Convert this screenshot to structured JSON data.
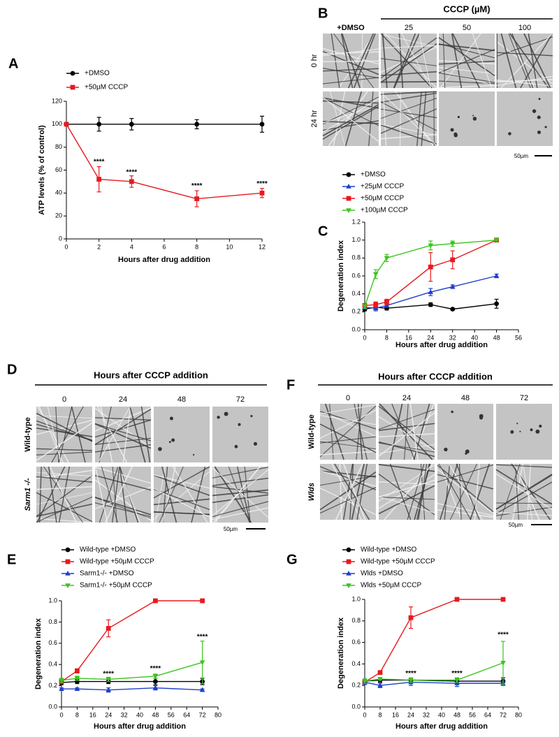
{
  "chart_data": [
    {
      "type": "line",
      "panel": "A",
      "xlabel": "Hours after drug addition",
      "ylabel": "ATP levels (% of control)",
      "x": [
        0,
        2,
        4,
        8,
        12
      ],
      "xlim": [
        0,
        12
      ],
      "xticks": [
        0,
        2,
        4,
        6,
        8,
        10,
        12
      ],
      "ylim": [
        0,
        120
      ],
      "yticks": [
        0,
        20,
        40,
        60,
        80,
        100,
        120
      ],
      "grid": false,
      "legend": "top-left",
      "series": [
        {
          "name": "+DMSO",
          "color": "#000000",
          "marker": "circle",
          "values": [
            100,
            100,
            100,
            100,
            100
          ],
          "errors": [
            0,
            6,
            5,
            4,
            7
          ]
        },
        {
          "name": "+50µM CCCP",
          "color": "#e8191f",
          "marker": "square",
          "values": [
            100,
            52,
            50,
            35,
            40
          ],
          "errors": [
            0,
            11,
            5,
            7,
            4
          ]
        }
      ],
      "annotations": [
        {
          "text": "****",
          "x": 2,
          "y": 67
        },
        {
          "text": "****",
          "x": 4,
          "y": 58
        },
        {
          "text": "****",
          "x": 8,
          "y": 46
        },
        {
          "text": "****",
          "x": 12,
          "y": 48
        }
      ]
    },
    {
      "type": "line",
      "panel": "C",
      "xlabel": "Hours after drug addition",
      "ylabel": "Degeneration index",
      "x": [
        0,
        4,
        8,
        24,
        32,
        48
      ],
      "xlim": [
        0,
        56
      ],
      "xticks": [
        0,
        8,
        16,
        24,
        32,
        40,
        48,
        56
      ],
      "ylim": [
        0,
        1.2
      ],
      "yticks": [
        {
          "value": 0,
          "label": "0.0"
        },
        0.2,
        0.4,
        0.6,
        0.8,
        {
          "value": 1,
          "label": "1.0"
        },
        1.2
      ],
      "grid": false,
      "legend": "top-left",
      "series": [
        {
          "name": "+DMSO",
          "color": "#000000",
          "marker": "circle",
          "values": [
            0.23,
            0.25,
            0.24,
            0.28,
            0.23,
            0.29
          ],
          "errors": [
            0.02,
            0.02,
            0.02,
            0.02,
            0.01,
            0.05
          ]
        },
        {
          "name": "+25µM CCCP",
          "color": "#1f3fc8",
          "marker": "triangle-up",
          "values": [
            0.25,
            0.24,
            0.27,
            0.42,
            0.48,
            0.6
          ],
          "errors": [
            0.02,
            0.03,
            0.02,
            0.04,
            0.02,
            0.02
          ]
        },
        {
          "name": "+50µM CCCP",
          "color": "#e8191f",
          "marker": "square",
          "values": [
            0.27,
            0.28,
            0.31,
            0.7,
            0.78,
            1.0
          ],
          "errors": [
            0.02,
            0.03,
            0.03,
            0.16,
            0.1,
            0.01
          ]
        },
        {
          "name": "+100µM CCCP",
          "color": "#3cc41e",
          "marker": "triangle-down",
          "values": [
            0.26,
            0.62,
            0.8,
            0.94,
            0.96,
            1.0
          ],
          "errors": [
            0.02,
            0.05,
            0.04,
            0.05,
            0.03,
            0.01
          ]
        }
      ]
    },
    {
      "type": "line",
      "panel": "E",
      "xlabel": "Hours after drug addition",
      "ylabel": "Degeneration index",
      "x": [
        0,
        8,
        24,
        48,
        72
      ],
      "xlim": [
        0,
        80
      ],
      "xticks": [
        0,
        8,
        16,
        24,
        32,
        40,
        48,
        56,
        64,
        72,
        80
      ],
      "ylim": [
        0,
        1.0
      ],
      "yticks": [
        {
          "value": 0,
          "label": "0.0"
        },
        0.2,
        0.4,
        0.6,
        0.8,
        {
          "value": 1,
          "label": "1.0"
        }
      ],
      "grid": false,
      "legend": "top-left",
      "series": [
        {
          "name": "Wild-type +DMSO",
          "color": "#000000",
          "marker": "circle",
          "values": [
            0.23,
            0.24,
            0.24,
            0.24,
            0.24
          ],
          "errors": [
            0.02,
            0.02,
            0.02,
            0.03,
            0.03
          ]
        },
        {
          "name": "Wild-type +50µM CCCP",
          "color": "#e8191f",
          "marker": "square",
          "values": [
            0.24,
            0.34,
            0.74,
            1.0,
            1.0
          ],
          "errors": [
            0.02,
            0.02,
            0.08,
            0,
            0
          ]
        },
        {
          "name": "Sarm1-/- +DMSO",
          "color": "#1f3fc8",
          "marker": "triangle-up",
          "values": [
            0.17,
            0.17,
            0.16,
            0.18,
            0.16
          ],
          "errors": [
            0.01,
            0.01,
            0.02,
            0.02,
            0.01
          ]
        },
        {
          "name": "Sarm1-/- +50µM CCCP",
          "color": "#3cc41e",
          "marker": "triangle-down",
          "values": [
            0.25,
            0.27,
            0.26,
            0.29,
            0.42
          ],
          "errors": [
            0.02,
            0.02,
            0.02,
            0.02,
            0.2
          ]
        }
      ],
      "annotations": [
        {
          "text": "****",
          "x": 24,
          "y": 0.31
        },
        {
          "text": "****",
          "x": 48,
          "y": 0.36
        },
        {
          "text": "****",
          "x": 72,
          "y": 0.66
        }
      ]
    },
    {
      "type": "line",
      "panel": "G",
      "xlabel": "Hours after drug addition",
      "ylabel": "Degeneration index",
      "x": [
        0,
        8,
        24,
        48,
        72
      ],
      "xlim": [
        0,
        80
      ],
      "xticks": [
        0,
        8,
        16,
        24,
        32,
        40,
        48,
        56,
        64,
        72,
        80
      ],
      "ylim": [
        0,
        1.0
      ],
      "yticks": [
        {
          "value": 0,
          "label": "0.0"
        },
        0.2,
        0.4,
        0.6,
        0.8,
        {
          "value": 1,
          "label": "1.0"
        }
      ],
      "grid": false,
      "legend": "top-left",
      "series": [
        {
          "name": "Wild-type +DMSO",
          "color": "#000000",
          "marker": "circle",
          "values": [
            0.24,
            0.25,
            0.25,
            0.24,
            0.24
          ],
          "errors": [
            0.02,
            0.02,
            0.02,
            0.03,
            0.03
          ]
        },
        {
          "name": "Wild-type +50µM CCCP",
          "color": "#e8191f",
          "marker": "square",
          "values": [
            0.23,
            0.32,
            0.83,
            1.0,
            1.0
          ],
          "errors": [
            0.02,
            0.01,
            0.1,
            0,
            0
          ]
        },
        {
          "name": "Wlds +DMSO",
          "color": "#1f3fc8",
          "marker": "triangle-up",
          "values": [
            0.23,
            0.2,
            0.23,
            0.22,
            0.22
          ],
          "errors": [
            0.02,
            0.02,
            0.03,
            0.03,
            0.02
          ]
        },
        {
          "name": "Wlds +50µM CCCP",
          "color": "#3cc41e",
          "marker": "triangle-down",
          "values": [
            0.24,
            0.26,
            0.25,
            0.25,
            0.41
          ],
          "errors": [
            0.02,
            0.01,
            0.02,
            0.02,
            0.2
          ]
        }
      ],
      "annotations": [
        {
          "text": "****",
          "x": 24,
          "y": 0.31
        },
        {
          "text": "****",
          "x": 48,
          "y": 0.31
        },
        {
          "text": "****",
          "x": 72,
          "y": 0.67
        }
      ]
    }
  ],
  "image_panels": [
    {
      "panel": "B",
      "header": "CCCP (µM)",
      "columns": [
        "+DMSO",
        "25",
        "50",
        "100"
      ],
      "rows": [
        "0 hr",
        "24 hr"
      ],
      "scale_bar": "50µm"
    },
    {
      "panel": "D",
      "header": "Hours after CCCP addition",
      "columns": [
        "0",
        "24",
        "48",
        "72"
      ],
      "rows": [
        "Wild-type",
        "Sarm1 -/-"
      ],
      "scale_bar": "50µm"
    },
    {
      "panel": "F",
      "header": "Hours after CCCP addition",
      "columns": [
        "0",
        "24",
        "48",
        "72"
      ],
      "rows": [
        "Wild-type",
        "Wlds"
      ],
      "scale_bar": "50µm"
    }
  ]
}
